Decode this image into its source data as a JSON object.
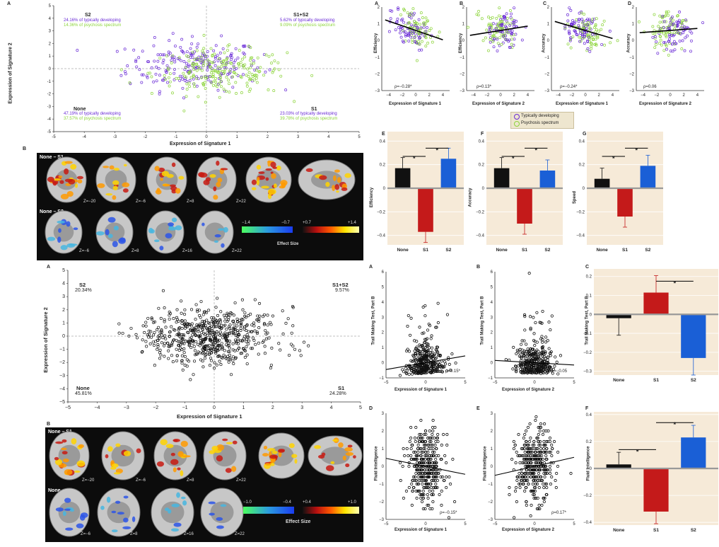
{
  "top": {
    "A": {
      "label": "A",
      "xlabel": "Expression of Signature 1",
      "ylabel": "Expression of Signature 2",
      "xticks": [
        "-5",
        "-4",
        "-3",
        "-2",
        "-1",
        "0",
        "1",
        "2",
        "3",
        "4",
        "5"
      ],
      "yticks": [
        "5",
        "4",
        "3",
        "2",
        "1",
        "0",
        "-1",
        "-2",
        "-3",
        "-4",
        "-5"
      ],
      "q_s2": {
        "name": "S2",
        "td": "24.16% of typically developing",
        "ps": "14.36% of psychosis spectrum"
      },
      "q_s1s2": {
        "name": "S1+S2",
        "td": "5.62% of typically developing",
        "ps": "9.09% of psychosis spectrum"
      },
      "q_none": {
        "name": "None",
        "td": "47.19% of typically developing",
        "ps": "37.57% of psychosis spectrum"
      },
      "q_s1": {
        "name": "S1",
        "td": "23.03% of typically developing",
        "ps": "39.78% of psychosis spectrum"
      }
    },
    "B": {
      "label": "B",
      "row1_title": "None – S1",
      "row2_title": "None – S2",
      "row1_z": [
        "Z=−20",
        "Z=−6",
        "Z=8",
        "Z=22"
      ],
      "row2_z": [
        "Z=−6",
        "Z=8",
        "Z=16",
        "Z=22"
      ],
      "neg_min": "−1.4",
      "neg_max": "−0.7",
      "pos_min": "+0.7",
      "pos_max": "+1.4",
      "effect": "Effect Size"
    },
    "scatters": [
      {
        "label": "A",
        "ylabel": "Efficiency",
        "xlabel": "Expression of Signature 1",
        "rho": "ρ=−0.28*"
      },
      {
        "label": "B",
        "ylabel": "Efficiency",
        "xlabel": "Expression of Signature 2",
        "rho": "ρ=0.13*"
      },
      {
        "label": "C",
        "ylabel": "Accuracy",
        "xlabel": "Expression of Signature 1",
        "rho": "ρ=−0.24*"
      },
      {
        "label": "D",
        "ylabel": "Accuracy",
        "xlabel": "Expression of Signature 2",
        "rho": "ρ=0.06"
      }
    ],
    "scatter_xticks": [
      "−4",
      "−2",
      "0",
      "2",
      "4"
    ],
    "scatter_yticks": [
      "2",
      "1",
      "0",
      "−1",
      "−2",
      "−3"
    ],
    "legend": {
      "td": "Typically developing",
      "ps": "Psychosis spectrum"
    },
    "bars": [
      {
        "label": "E",
        "ylabel": "Efficiency",
        "values": [
          0.17,
          -0.37,
          0.25
        ]
      },
      {
        "label": "F",
        "ylabel": "Accuracy",
        "values": [
          0.17,
          -0.3,
          0.15
        ]
      },
      {
        "label": "G",
        "ylabel": "Speed",
        "values": [
          0.08,
          -0.24,
          0.19
        ]
      }
    ],
    "bar_cats": [
      "None",
      "S1",
      "S2"
    ],
    "bar_yticks": [
      "0.4",
      "0.2",
      "0",
      "−0.2",
      "−0.4"
    ]
  },
  "bottom": {
    "A": {
      "label": "A",
      "xlabel": "Expression of Signature 1",
      "ylabel": "Expression of Signature 2",
      "xticks": [
        "−5",
        "−4",
        "−3",
        "−2",
        "−1",
        "0",
        "1",
        "2",
        "3",
        "4",
        "5"
      ],
      "yticks": [
        "5",
        "4",
        "3",
        "2",
        "1",
        "0",
        "−1",
        "−2",
        "−3",
        "−4",
        "−5"
      ],
      "q_s2": {
        "name": "S2",
        "pct": "20.34%"
      },
      "q_s1s2": {
        "name": "S1+S2",
        "pct": "9.57%"
      },
      "q_none": {
        "name": "None",
        "pct": "45.81%"
      },
      "q_s1": {
        "name": "S1",
        "pct": "24.28%"
      }
    },
    "B": {
      "label": "B",
      "row1_title": "None – S1",
      "row2_title": "None – S2",
      "row1_z": [
        "Z=−20",
        "Z=−6",
        "Z=8",
        "Z=22"
      ],
      "row2_z": [
        "Z=−6",
        "Z=8",
        "Z=16",
        "Z=22"
      ],
      "neg_min": "−1.0",
      "neg_max": "−0.4",
      "pos_min": "+0.4",
      "pos_max": "+1.0",
      "effect": "Effect Size"
    },
    "scatters": [
      {
        "label": "A",
        "ylabel": "Trail Making Test, Part B",
        "xlabel": "Expression of Signature 1",
        "rho": "ρ=0.15*"
      },
      {
        "label": "B",
        "ylabel": "Trail Making Test, Part B",
        "xlabel": "Expression of Signature 2",
        "rho": "ρ=−0.05"
      },
      {
        "label": "D",
        "ylabel": "Fluid Intelligence",
        "xlabel": "Expression of Signature 1",
        "rho": "ρ=−0.15*"
      },
      {
        "label": "E",
        "ylabel": "Fluid Intelligence",
        "xlabel": "Expression of Signature 2",
        "rho": "ρ=0.17*"
      }
    ],
    "tmt_yticks": [
      "6",
      "5",
      "4",
      "3",
      "2",
      "1",
      "0",
      "−1"
    ],
    "fi_yticks": [
      "3",
      "2",
      "1",
      "0",
      "−1",
      "−2",
      "−3"
    ],
    "scatter_xticks": [
      "−5",
      "0",
      "5"
    ],
    "bars": [
      {
        "label": "C",
        "ylabel": "Trail Making Test, Part B",
        "values": [
          -0.02,
          0.115,
          -0.23
        ],
        "yticks": [
          "0.2",
          "0.1",
          "0",
          "−0.1",
          "−0.2",
          "−0.3"
        ]
      },
      {
        "label": "F",
        "ylabel": "Fluid Intelligence",
        "values": [
          0.03,
          -0.32,
          0.23
        ],
        "yticks": [
          "0.4",
          "0.2",
          "0",
          "−0.2",
          "−0.4"
        ]
      }
    ],
    "bar_cats": [
      "None",
      "S1",
      "S2"
    ]
  },
  "colors": {
    "td": "#6a2bd6",
    "ps": "#8cd43a",
    "none": "#111111",
    "s1": "#c41a1a",
    "s2": "#1a5fd6",
    "panel": "#f6ead8"
  }
}
